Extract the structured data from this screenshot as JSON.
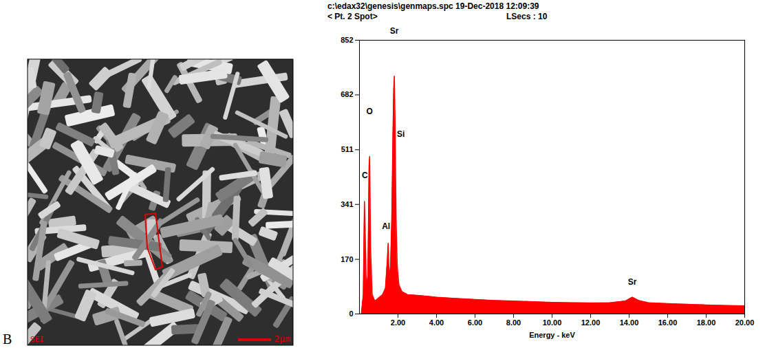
{
  "panel_label": "B",
  "image": {
    "mode_label": "SEI",
    "scale_bar": "2μm"
  },
  "chart_data": {
    "type": "area",
    "title": "c:\\edax32\\genesis\\genmaps.spc 19-Dec-2018 12:09:39",
    "subtitle": "< Pt. 2 Spot>",
    "subtitle_right": "LSecs : 10",
    "x_label": "Energy - keV",
    "color": "#ff0000",
    "x": [
      0.1,
      0.2,
      0.26,
      0.3,
      0.36,
      0.44,
      0.5,
      0.53,
      0.58,
      0.66,
      0.8,
      1.0,
      1.2,
      1.35,
      1.45,
      1.49,
      1.53,
      1.6,
      1.68,
      1.74,
      1.78,
      1.81,
      1.85,
      1.9,
      1.96,
      2.05,
      2.2,
      2.5,
      3.0,
      3.5,
      4.0,
      5.0,
      6.0,
      7.0,
      8.0,
      9.0,
      10.0,
      11.0,
      12.0,
      13.0,
      13.8,
      14.16,
      14.5,
      15.0,
      16.0,
      17.0,
      18.0,
      19.0,
      20.0
    ],
    "values": [
      0,
      60,
      350,
      250,
      80,
      120,
      460,
      490,
      200,
      60,
      40,
      50,
      60,
      80,
      170,
      220,
      150,
      110,
      300,
      560,
      700,
      740,
      600,
      300,
      150,
      90,
      70,
      60,
      58,
      55,
      52,
      48,
      45,
      42,
      40,
      38,
      36,
      35,
      34,
      35,
      40,
      52,
      42,
      35,
      32,
      30,
      28,
      26,
      25
    ],
    "xlim": [
      0,
      20
    ],
    "xticks": [
      {
        "value": 2,
        "label": "2.00"
      },
      {
        "value": 4,
        "label": "4.00"
      },
      {
        "value": 6,
        "label": "6.00"
      },
      {
        "value": 8,
        "label": "8.00"
      },
      {
        "value": 10,
        "label": "10.00"
      },
      {
        "value": 12,
        "label": "12.00"
      },
      {
        "value": 14,
        "label": "14.00"
      },
      {
        "value": 16,
        "label": "16.00"
      },
      {
        "value": 18,
        "label": "18.00"
      },
      {
        "value": 20,
        "label": "20.00"
      }
    ],
    "ylim": [
      0,
      852
    ],
    "yticks": [
      0,
      170,
      341,
      511,
      682,
      852
    ],
    "annotations": [
      {
        "text": "C",
        "x": 0.28,
        "y": 430
      },
      {
        "text": "O",
        "x": 0.52,
        "y": 630
      },
      {
        "text": "Al",
        "x": 1.38,
        "y": 272
      },
      {
        "text": "Si",
        "x": 2.15,
        "y": 560
      },
      {
        "text": "Sr",
        "x": 1.81,
        "y": 880
      },
      {
        "text": "Sr",
        "x": 14.16,
        "y": 100
      }
    ]
  }
}
